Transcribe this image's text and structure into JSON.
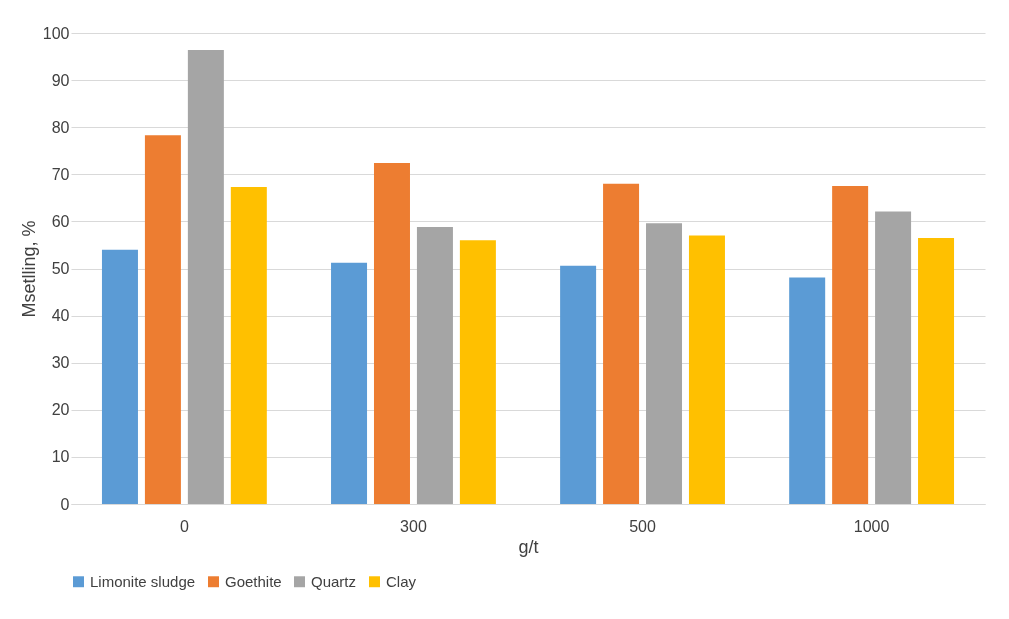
{
  "chart_data": {
    "type": "bar",
    "xlabel": "g/t",
    "ylabel": "Msetlling, %",
    "categories": [
      "0",
      "300",
      "500",
      "1000"
    ],
    "series": [
      {
        "name": "Limonite sludge",
        "color": "#5b9bd5",
        "values": [
          54.0,
          51.2,
          50.6,
          48.1
        ]
      },
      {
        "name": "Goethite",
        "color": "#ed7d31",
        "values": [
          78.3,
          72.4,
          68.0,
          67.5
        ]
      },
      {
        "name": "Quartz",
        "color": "#a5a5a5",
        "values": [
          96.4,
          58.8,
          59.6,
          62.1
        ]
      },
      {
        "name": "Clay",
        "color": "#ffc000",
        "values": [
          67.3,
          56.0,
          57.0,
          56.5
        ]
      }
    ],
    "ylim": [
      0,
      100
    ],
    "yticks": [
      0,
      10,
      20,
      30,
      40,
      50,
      60,
      70,
      80,
      90,
      100
    ],
    "grid": "y",
    "legend": "bottom"
  }
}
